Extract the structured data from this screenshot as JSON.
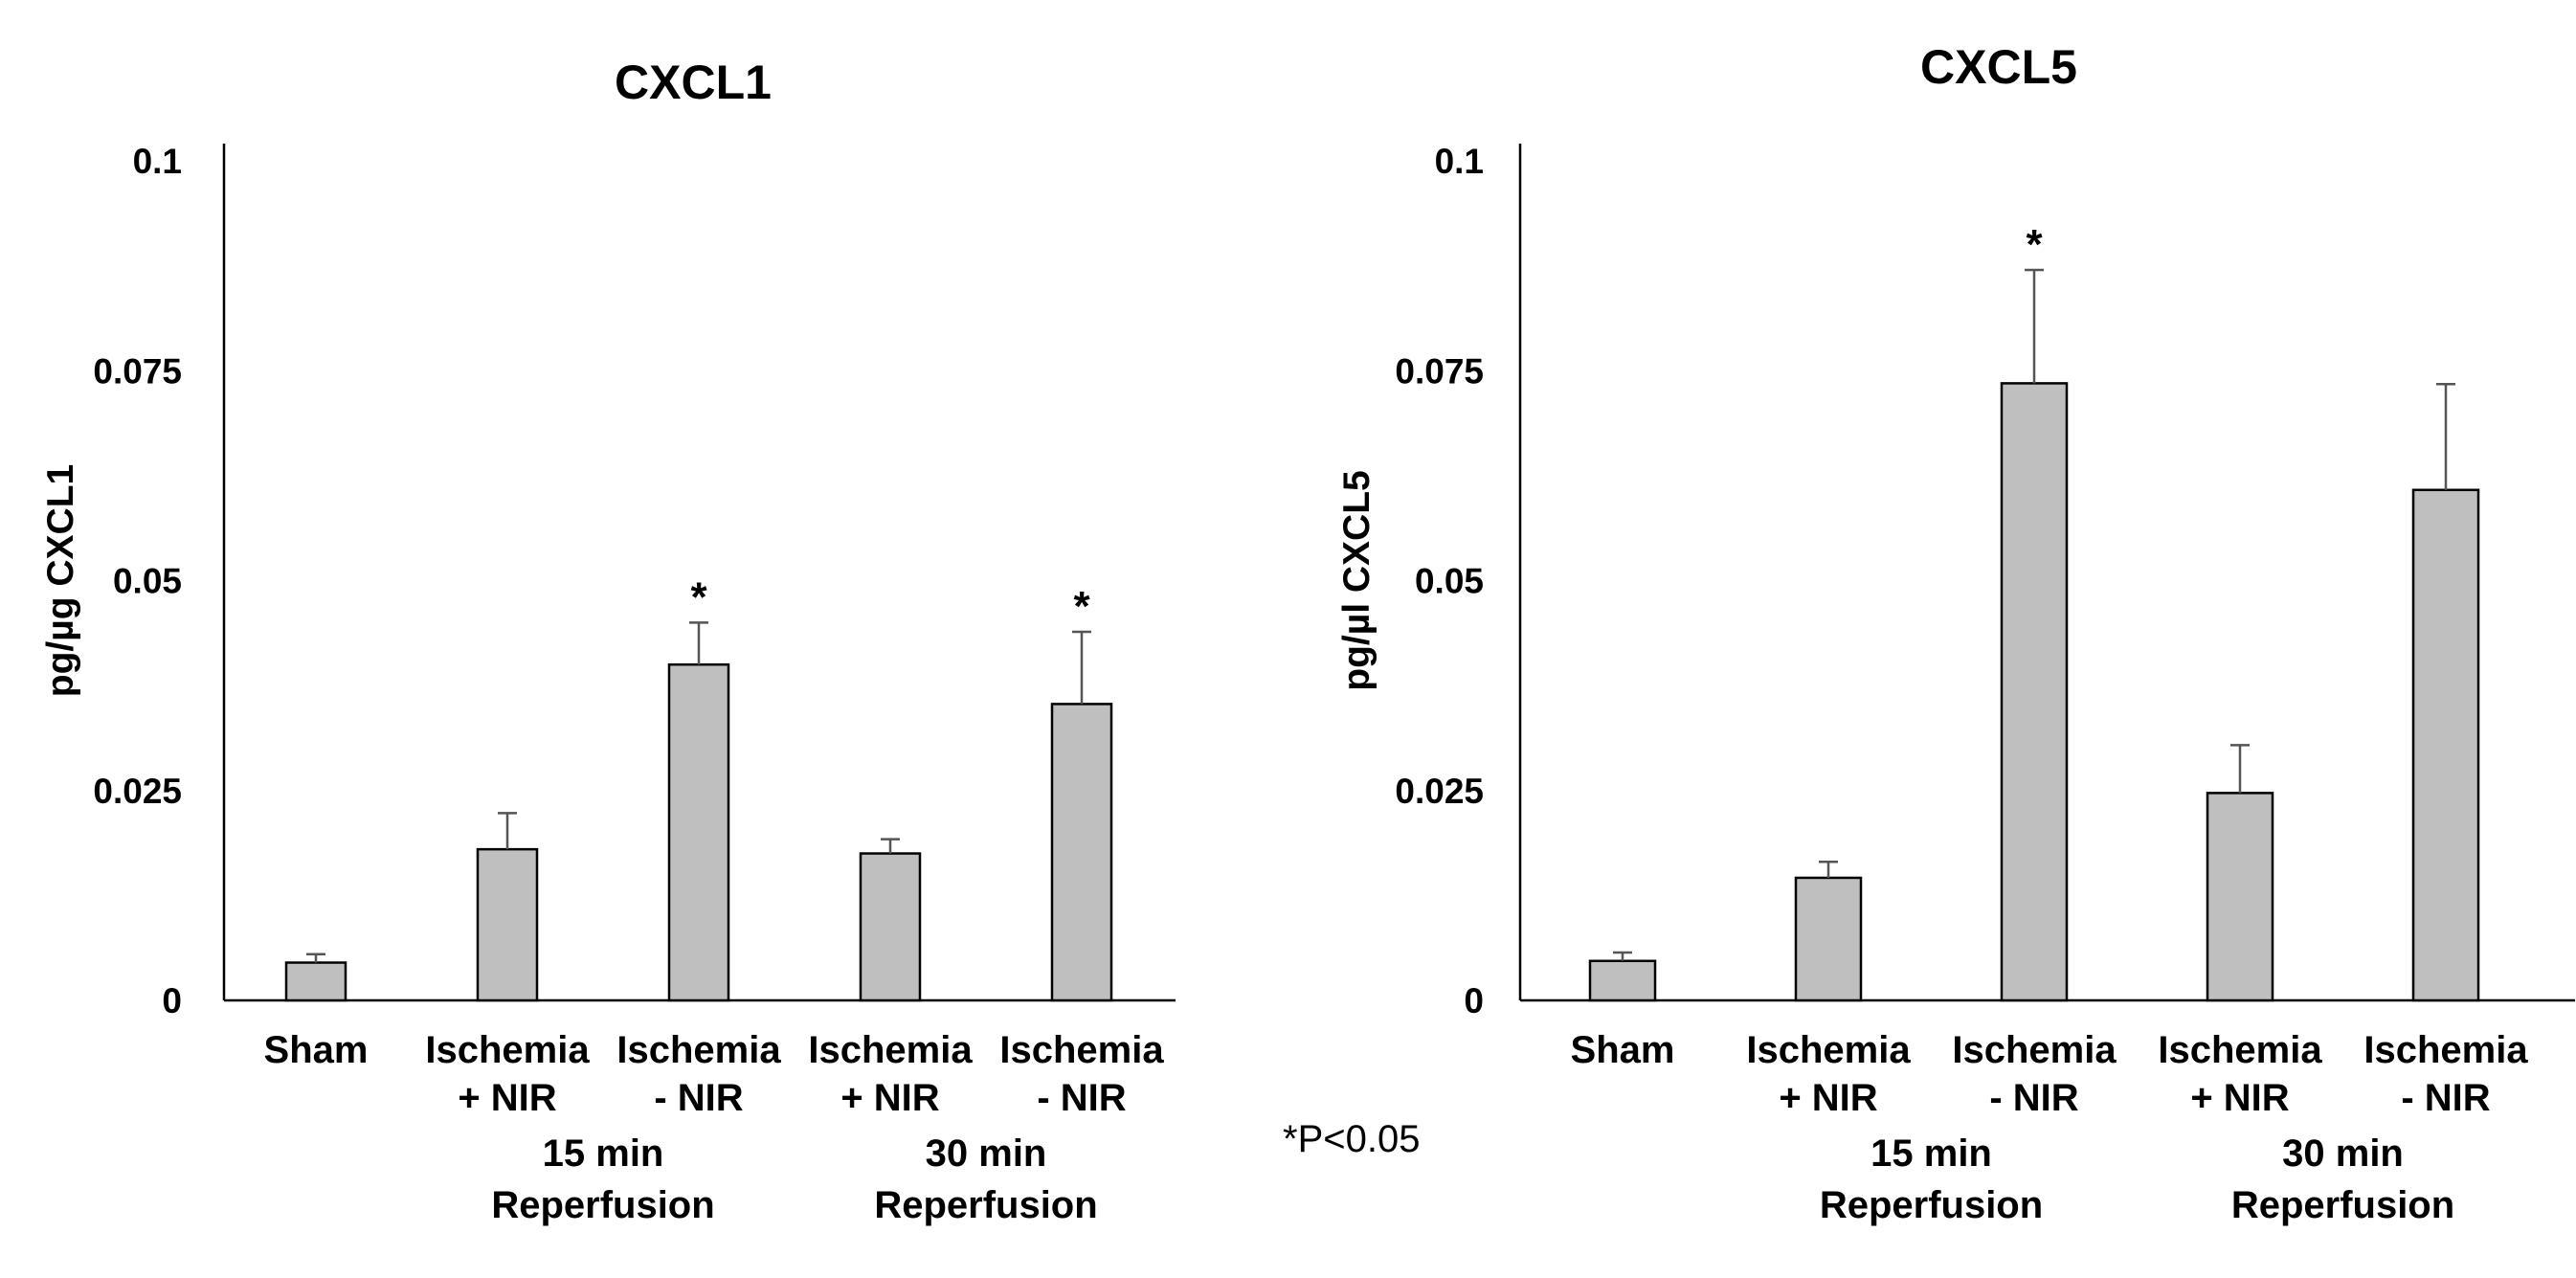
{
  "chart_data": [
    {
      "type": "bar",
      "title": "CXCL1",
      "ylabel": "pg/µg CXCL1",
      "xlabel": "",
      "ylim": [
        0,
        0.1
      ],
      "yticks": [
        "0",
        "0.025",
        "0.05",
        "0.075",
        "0.1"
      ],
      "bar_color": "#bfbfbf",
      "categories": [
        {
          "line1": "Sham",
          "line2": ""
        },
        {
          "line1": "Ischemia",
          "line2": "+ NIR"
        },
        {
          "line1": "Ischemia",
          "line2": "- NIR"
        },
        {
          "line1": "Ischemia",
          "line2": "+ NIR"
        },
        {
          "line1": "Ischemia",
          "line2": "- NIR"
        }
      ],
      "values": [
        0.0045,
        0.018,
        0.04,
        0.0175,
        0.0353
      ],
      "errors": [
        0.001,
        0.0043,
        0.005,
        0.0017,
        0.0086
      ],
      "significance": [
        "",
        "",
        "*",
        "",
        "*"
      ],
      "groups": [
        {
          "line1": "15 min",
          "line2": "Reperfusion",
          "bars": [
            1,
            2
          ]
        },
        {
          "line1": "30 min",
          "line2": "Reperfusion",
          "bars": [
            3,
            4
          ]
        }
      ]
    },
    {
      "type": "bar",
      "title": "CXCL5",
      "ylabel": "pg/µl CXCL5",
      "xlabel": "",
      "ylim": [
        0,
        0.1
      ],
      "yticks": [
        "0",
        "0.025",
        "0.05",
        "0.075",
        "0.1"
      ],
      "bar_color": "#bfbfbf",
      "categories": [
        {
          "line1": "Sham",
          "line2": ""
        },
        {
          "line1": "Ischemia",
          "line2": "+ NIR"
        },
        {
          "line1": "Ischemia",
          "line2": "- NIR"
        },
        {
          "line1": "Ischemia",
          "line2": "+ NIR"
        },
        {
          "line1": "Ischemia",
          "line2": "- NIR"
        }
      ],
      "values": [
        0.0047,
        0.0146,
        0.0735,
        0.0247,
        0.0608
      ],
      "errors": [
        0.001,
        0.0019,
        0.0135,
        0.0057,
        0.0126
      ],
      "significance": [
        "",
        "",
        "*",
        "",
        ""
      ],
      "groups": [
        {
          "line1": "15 min",
          "line2": "Reperfusion",
          "bars": [
            1,
            2
          ]
        },
        {
          "line1": "30 min",
          "line2": "Reperfusion",
          "bars": [
            3,
            4
          ]
        }
      ]
    }
  ],
  "footnote": "*P<0.05"
}
